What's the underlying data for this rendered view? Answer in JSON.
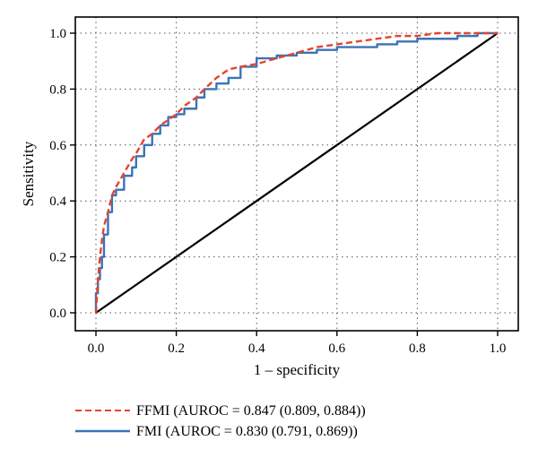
{
  "chart_data": {
    "type": "line",
    "title": "",
    "xlabel": "1 – specificity",
    "ylabel": "Sensitivity",
    "xlim": [
      0,
      1
    ],
    "ylim": [
      0,
      1
    ],
    "xticks": [
      "0.0",
      "0.2",
      "0.4",
      "0.6",
      "0.8",
      "1.0"
    ],
    "yticks": [
      "0.0",
      "0.2",
      "0.4",
      "0.6",
      "0.8",
      "1.0"
    ],
    "grid": true,
    "legend_placement": "bottom",
    "series": [
      {
        "name": "FFMI (AUROC = 0.847 (0.809, 0.884))",
        "color": "#e8432b",
        "style": "dashed",
        "x": [
          0,
          0.005,
          0.01,
          0.015,
          0.02,
          0.03,
          0.04,
          0.05,
          0.07,
          0.09,
          0.1,
          0.12,
          0.14,
          0.16,
          0.18,
          0.2,
          0.22,
          0.25,
          0.27,
          0.3,
          0.33,
          0.36,
          0.4,
          0.45,
          0.5,
          0.55,
          0.6,
          0.65,
          0.7,
          0.75,
          0.8,
          0.85,
          0.9,
          0.95,
          1.0
        ],
        "y": [
          0,
          0.12,
          0.2,
          0.26,
          0.31,
          0.36,
          0.42,
          0.45,
          0.5,
          0.55,
          0.57,
          0.62,
          0.64,
          0.67,
          0.69,
          0.71,
          0.74,
          0.77,
          0.8,
          0.84,
          0.87,
          0.88,
          0.89,
          0.91,
          0.93,
          0.95,
          0.96,
          0.97,
          0.98,
          0.99,
          0.99,
          1.0,
          1.0,
          1.0,
          1.0
        ]
      },
      {
        "name": "FMI (AUROC = 0.830 (0.791, 0.869))",
        "color": "#3a73b7",
        "style": "solid",
        "x": [
          0,
          0.005,
          0.01,
          0.015,
          0.02,
          0.03,
          0.04,
          0.05,
          0.07,
          0.09,
          0.1,
          0.12,
          0.14,
          0.16,
          0.18,
          0.2,
          0.22,
          0.25,
          0.27,
          0.3,
          0.33,
          0.36,
          0.4,
          0.45,
          0.5,
          0.55,
          0.6,
          0.65,
          0.7,
          0.75,
          0.8,
          0.85,
          0.9,
          0.95,
          1.0
        ],
        "y": [
          0,
          0.07,
          0.12,
          0.16,
          0.2,
          0.28,
          0.36,
          0.42,
          0.44,
          0.49,
          0.52,
          0.56,
          0.6,
          0.64,
          0.67,
          0.7,
          0.71,
          0.73,
          0.77,
          0.8,
          0.82,
          0.84,
          0.88,
          0.91,
          0.92,
          0.93,
          0.94,
          0.95,
          0.95,
          0.96,
          0.97,
          0.98,
          0.98,
          0.99,
          1.0
        ]
      },
      {
        "name": "",
        "color": "#000000",
        "style": "solid",
        "x": [
          0,
          1
        ],
        "y": [
          0,
          1
        ]
      }
    ]
  }
}
